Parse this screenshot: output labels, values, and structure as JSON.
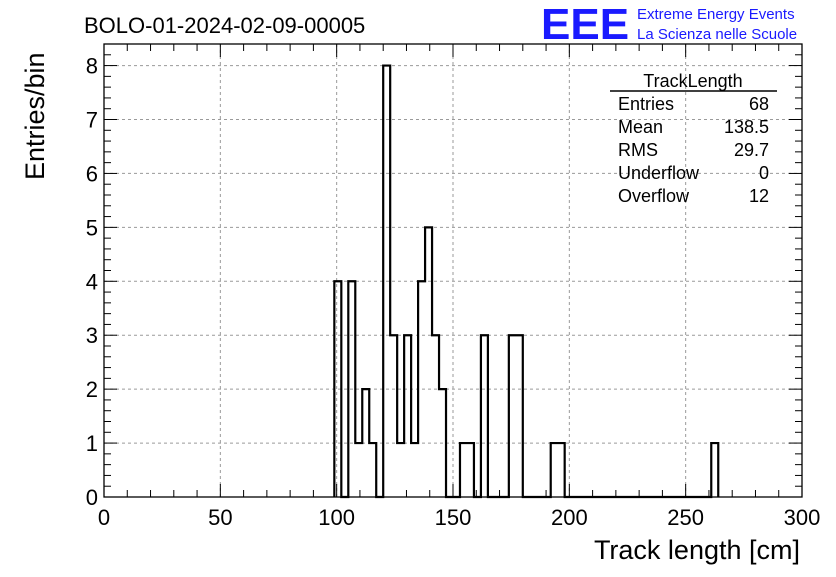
{
  "header": {
    "run_title": "BOLO-01-2024-02-09-00005",
    "logo_text": "EEE",
    "brand_line1": "Extreme Energy Events",
    "brand_line2": "La Scienza nelle Scuole",
    "brand_color": "#1a1aff"
  },
  "stats_box": {
    "title": "TrackLength",
    "rows": [
      {
        "label": "Entries",
        "value": "68"
      },
      {
        "label": "Mean",
        "value": "138.5"
      },
      {
        "label": "RMS",
        "value": "29.7"
      },
      {
        "label": "Underflow",
        "value": "0"
      },
      {
        "label": "Overflow",
        "value": "12"
      }
    ]
  },
  "chart_data": {
    "type": "bar",
    "histogram": true,
    "xlabel": "Track length [cm]",
    "ylabel": "Entries/bin",
    "xlim": [
      0,
      300
    ],
    "ylim": [
      0,
      8.4
    ],
    "x_ticks": [
      0,
      50,
      100,
      150,
      200,
      250,
      300
    ],
    "y_ticks": [
      0,
      1,
      2,
      3,
      4,
      5,
      6,
      7,
      8
    ],
    "grid": true,
    "bin_width": 3,
    "bins": [
      {
        "x_low": 99,
        "count": 4
      },
      {
        "x_low": 105,
        "count": 4
      },
      {
        "x_low": 108,
        "count": 1
      },
      {
        "x_low": 111,
        "count": 2
      },
      {
        "x_low": 114,
        "count": 1
      },
      {
        "x_low": 120,
        "count": 8
      },
      {
        "x_low": 123,
        "count": 3
      },
      {
        "x_low": 126,
        "count": 1
      },
      {
        "x_low": 129,
        "count": 3
      },
      {
        "x_low": 132,
        "count": 1
      },
      {
        "x_low": 135,
        "count": 4
      },
      {
        "x_low": 138,
        "count": 5
      },
      {
        "x_low": 141,
        "count": 3
      },
      {
        "x_low": 144,
        "count": 2
      },
      {
        "x_low": 153,
        "count": 1
      },
      {
        "x_low": 156,
        "count": 1
      },
      {
        "x_low": 162,
        "count": 3
      },
      {
        "x_low": 174,
        "count": 3
      },
      {
        "x_low": 177,
        "count": 3
      },
      {
        "x_low": 192,
        "count": 1
      },
      {
        "x_low": 195,
        "count": 1
      },
      {
        "x_low": 261,
        "count": 1
      }
    ]
  }
}
